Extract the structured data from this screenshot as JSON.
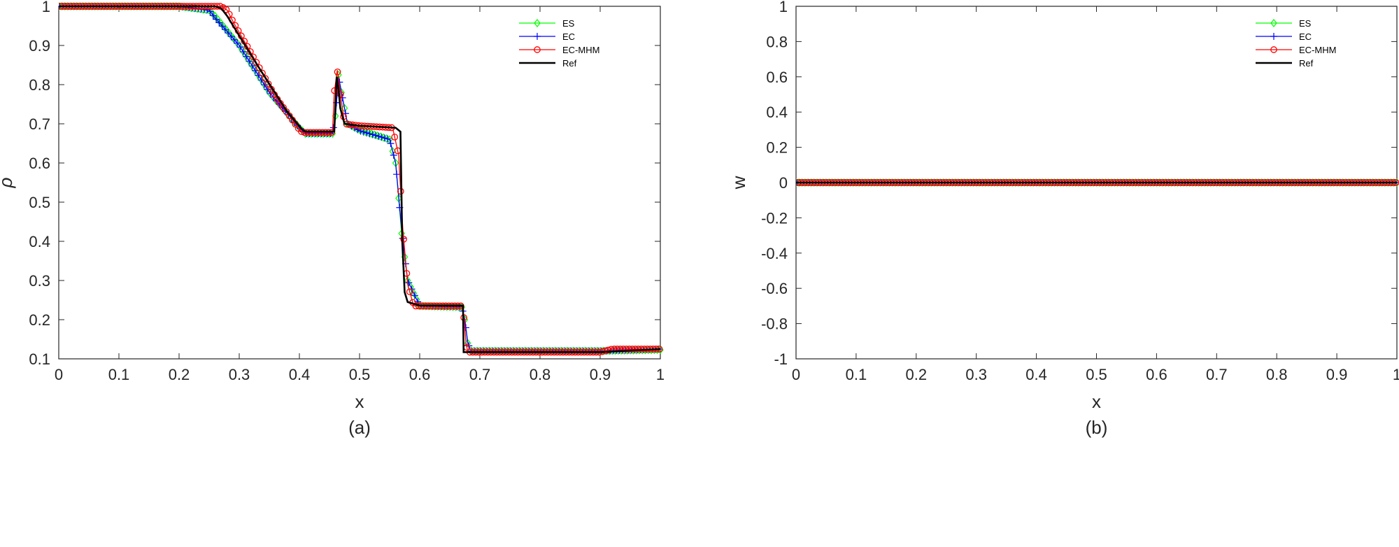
{
  "chart_data": [
    {
      "type": "line",
      "caption": "(a)",
      "xlabel": "x",
      "ylabel": "ρ",
      "xlim": [
        0,
        1
      ],
      "ylim": [
        0.1,
        1
      ],
      "xticks": [
        "0",
        "0.1",
        "0.2",
        "0.3",
        "0.4",
        "0.5",
        "0.6",
        "0.7",
        "0.8",
        "0.9",
        "1"
      ],
      "yticks": [
        "0.1",
        "0.2",
        "0.3",
        "0.4",
        "0.5",
        "0.6",
        "0.7",
        "0.8",
        "0.9",
        "1"
      ],
      "legend_position": "top-right",
      "grid": false,
      "series": [
        {
          "name": "ES",
          "color": "#00ff00",
          "marker": "diamond",
          "x": [
            0,
            0.2,
            0.25,
            0.26,
            0.3,
            0.35,
            0.4,
            0.41,
            0.455,
            0.46,
            0.465,
            0.47,
            0.48,
            0.5,
            0.55,
            0.56,
            0.57,
            0.58,
            0.6,
            0.67,
            0.675,
            0.68,
            0.685,
            0.9,
            1
          ],
          "y": [
            1,
            1,
            0.99,
            0.975,
            0.9,
            0.78,
            0.69,
            0.675,
            0.675,
            0.72,
            0.825,
            0.78,
            0.7,
            0.685,
            0.66,
            0.6,
            0.42,
            0.3,
            0.235,
            0.232,
            0.2,
            0.14,
            0.12,
            0.12,
            0.123
          ]
        },
        {
          "name": "EC",
          "color": "#0000ff",
          "marker": "plus",
          "x": [
            0,
            0.2,
            0.25,
            0.26,
            0.3,
            0.35,
            0.4,
            0.41,
            0.455,
            0.46,
            0.465,
            0.47,
            0.48,
            0.5,
            0.55,
            0.56,
            0.57,
            0.58,
            0.6,
            0.67,
            0.675,
            0.68,
            0.685,
            0.9,
            1
          ],
          "y": [
            1,
            1,
            0.99,
            0.97,
            0.9,
            0.78,
            0.69,
            0.675,
            0.675,
            0.72,
            0.82,
            0.78,
            0.7,
            0.682,
            0.66,
            0.6,
            0.43,
            0.3,
            0.235,
            0.233,
            0.2,
            0.14,
            0.12,
            0.12,
            0.125
          ]
        },
        {
          "name": "EC-MHM",
          "color": "#ff0000",
          "marker": "circle",
          "x": [
            0,
            0.27,
            0.28,
            0.29,
            0.32,
            0.36,
            0.4,
            0.405,
            0.455,
            0.458,
            0.463,
            0.468,
            0.475,
            0.5,
            0.555,
            0.565,
            0.572,
            0.58,
            0.59,
            0.67,
            0.674,
            0.677,
            0.68,
            0.9,
            0.92,
            1
          ],
          "y": [
            1,
            1,
            0.99,
            0.96,
            0.88,
            0.77,
            0.685,
            0.678,
            0.678,
            0.78,
            0.837,
            0.78,
            0.7,
            0.695,
            0.69,
            0.62,
            0.43,
            0.29,
            0.235,
            0.235,
            0.2,
            0.14,
            0.117,
            0.117,
            0.125,
            0.125
          ]
        },
        {
          "name": "Ref",
          "color": "#000000",
          "marker": "none",
          "x": [
            0,
            0.26,
            0.27,
            0.28,
            0.33,
            0.38,
            0.405,
            0.41,
            0.458,
            0.46,
            0.462,
            0.465,
            0.468,
            0.475,
            0.5,
            0.56,
            0.568,
            0.571,
            0.575,
            0.58,
            0.6,
            0.672,
            0.673,
            0.68,
            0.9,
            1
          ],
          "y": [
            1,
            1,
            0.995,
            0.975,
            0.85,
            0.73,
            0.685,
            0.68,
            0.68,
            0.75,
            0.82,
            0.79,
            0.74,
            0.7,
            0.695,
            0.69,
            0.68,
            0.4,
            0.27,
            0.245,
            0.236,
            0.236,
            0.117,
            0.117,
            0.117,
            0.125
          ]
        }
      ]
    },
    {
      "type": "line",
      "caption": "(b)",
      "xlabel": "x",
      "ylabel": "w",
      "xlim": [
        0,
        1
      ],
      "ylim": [
        -1,
        1
      ],
      "xticks": [
        "0",
        "0.1",
        "0.2",
        "0.3",
        "0.4",
        "0.5",
        "0.6",
        "0.7",
        "0.8",
        "0.9",
        "1"
      ],
      "yticks": [
        "-1",
        "-0.8",
        "-0.6",
        "-0.4",
        "-0.2",
        "0",
        "0.2",
        "0.4",
        "0.6",
        "0.8",
        "1"
      ],
      "legend_position": "top-right",
      "grid": false,
      "series": [
        {
          "name": "ES",
          "color": "#00ff00",
          "marker": "diamond",
          "x": [
            0,
            1
          ],
          "y": [
            0,
            0
          ]
        },
        {
          "name": "EC",
          "color": "#0000ff",
          "marker": "plus",
          "x": [
            0,
            1
          ],
          "y": [
            0,
            0
          ]
        },
        {
          "name": "EC-MHM",
          "color": "#ff0000",
          "marker": "circle",
          "x": [
            0,
            1
          ],
          "y": [
            0,
            0
          ]
        },
        {
          "name": "Ref",
          "color": "#000000",
          "marker": "none",
          "x": [
            0,
            1
          ],
          "y": [
            0,
            0
          ]
        }
      ]
    }
  ]
}
